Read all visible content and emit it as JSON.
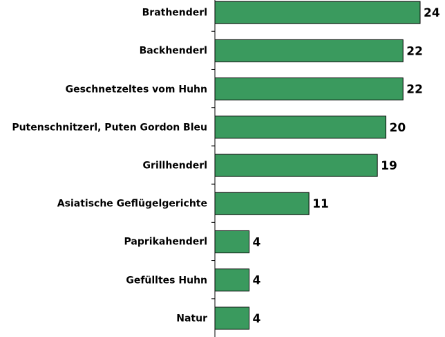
{
  "chart_data": {
    "type": "bar",
    "orientation": "horizontal",
    "categories": [
      "Brathenderl",
      "Backhenderl",
      "Geschnetzeltes vom Huhn",
      "Putenschnitzerl, Puten Gordon Bleu",
      "Grillhenderl",
      "Asiatische Geflügelgerichte",
      "Paprikahenderl",
      "Gefülltes Huhn",
      "Natur"
    ],
    "values": [
      24,
      22,
      22,
      20,
      19,
      11,
      4,
      4,
      4
    ],
    "color": "#3a9a5e"
  }
}
